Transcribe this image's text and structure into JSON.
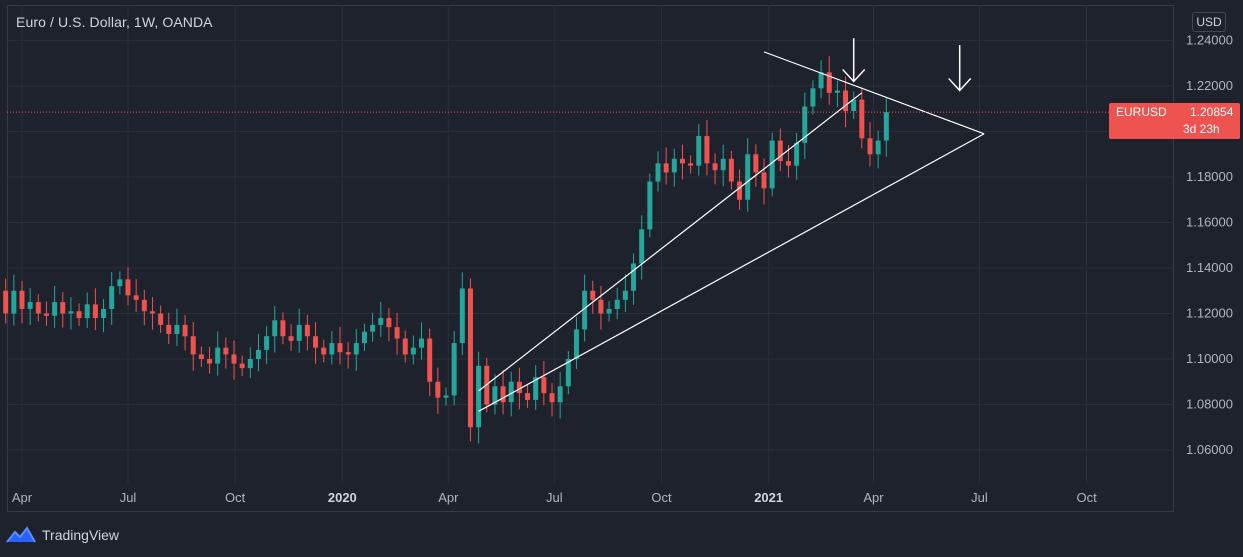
{
  "header": {
    "title": "Euro / U.S. Dollar, 1W, OANDA",
    "currency": "USD"
  },
  "price_tag": {
    "symbol": "EURUSD",
    "value": "1.20854",
    "countdown": "3d 23h",
    "color": "#ef5350"
  },
  "brand": {
    "name": "TradingView",
    "icon": "tradingview-logo-icon"
  },
  "colors": {
    "background": "#1e222d",
    "grid": "#2a2e39",
    "up": "#26a69a",
    "down": "#ef5350",
    "drawing": "#ffffff"
  },
  "chart_data": {
    "type": "candlestick",
    "title": "Euro / U.S. Dollar, 1W, OANDA",
    "timeframe": "1W",
    "ylim": [
      1.05,
      1.245
    ],
    "y_ticks": [
      "1.24000",
      "1.22000",
      "1.20000",
      "1.18000",
      "1.16000",
      "1.14000",
      "1.12000",
      "1.10000",
      "1.08000",
      "1.06000"
    ],
    "y_tick_values": [
      1.24,
      1.22,
      1.2,
      1.18,
      1.16,
      1.14,
      1.12,
      1.1,
      1.08,
      1.06
    ],
    "x_ticks": [
      {
        "label": "Apr",
        "date": "2019-04-01",
        "bold": false
      },
      {
        "label": "Jul",
        "date": "2019-07-01",
        "bold": false
      },
      {
        "label": "Oct",
        "date": "2019-10-01",
        "bold": false
      },
      {
        "label": "2020",
        "date": "2020-01-01",
        "bold": true
      },
      {
        "label": "Apr",
        "date": "2020-04-01",
        "bold": false
      },
      {
        "label": "Jul",
        "date": "2020-07-01",
        "bold": false
      },
      {
        "label": "Oct",
        "date": "2020-10-01",
        "bold": false
      },
      {
        "label": "2021",
        "date": "2021-01-01",
        "bold": true
      },
      {
        "label": "Apr",
        "date": "2021-04-01",
        "bold": false
      },
      {
        "label": "Jul",
        "date": "2021-07-01",
        "bold": false
      },
      {
        "label": "Oct",
        "date": "2021-10-01",
        "bold": false
      }
    ],
    "first_week": "2019-03-11",
    "weeks": 110,
    "last_price": 1.20854,
    "closes": [
      1.13,
      1.12,
      1.13,
      1.122,
      1.125,
      1.12,
      1.119,
      1.125,
      1.12,
      1.121,
      1.118,
      1.124,
      1.118,
      1.122,
      1.132,
      1.135,
      1.128,
      1.126,
      1.121,
      1.12,
      1.115,
      1.111,
      1.115,
      1.11,
      1.102,
      1.1,
      1.098,
      1.105,
      1.102,
      1.098,
      1.096,
      1.1,
      1.104,
      1.11,
      1.117,
      1.11,
      1.108,
      1.115,
      1.11,
      1.105,
      1.102,
      1.107,
      1.103,
      1.102,
      1.107,
      1.112,
      1.115,
      1.118,
      1.114,
      1.109,
      1.102,
      1.105,
      1.109,
      1.09,
      1.083,
      1.084,
      1.107,
      1.131,
      1.07,
      1.097,
      1.08,
      1.088,
      1.081,
      1.09,
      1.085,
      1.082,
      1.092,
      1.085,
      1.081,
      1.088,
      1.1,
      1.113,
      1.13,
      1.126,
      1.12,
      1.122,
      1.126,
      1.13,
      1.142,
      1.157,
      1.178,
      1.186,
      1.182,
      1.188,
      1.186,
      1.185,
      1.198,
      1.186,
      1.183,
      1.188,
      1.178,
      1.17,
      1.19,
      1.182,
      1.175,
      1.196,
      1.187,
      1.185,
      1.195,
      1.211,
      1.219,
      1.226,
      1.217,
      1.218,
      1.209,
      1.214,
      1.197,
      1.19,
      1.196,
      1.2085
    ],
    "drawings": [
      {
        "type": "trendline",
        "from": [
          "2020-04-27",
          1.077
        ],
        "to": [
          "2021-07-05",
          1.199
        ]
      },
      {
        "type": "trendline",
        "from": [
          "2020-04-27",
          1.086
        ],
        "to": [
          "2021-03-22",
          1.217
        ]
      },
      {
        "type": "trendline",
        "from": [
          "2020-12-28",
          1.235
        ],
        "to": [
          "2021-07-05",
          1.199
        ]
      },
      {
        "type": "arrow",
        "direction": "down",
        "at": [
          "2021-03-15",
          1.241
        ],
        "to": [
          "2021-03-15",
          1.222
        ]
      },
      {
        "type": "arrow",
        "direction": "down",
        "at": [
          "2021-06-14",
          1.238
        ],
        "to": [
          "2021-06-14",
          1.218
        ]
      }
    ]
  }
}
